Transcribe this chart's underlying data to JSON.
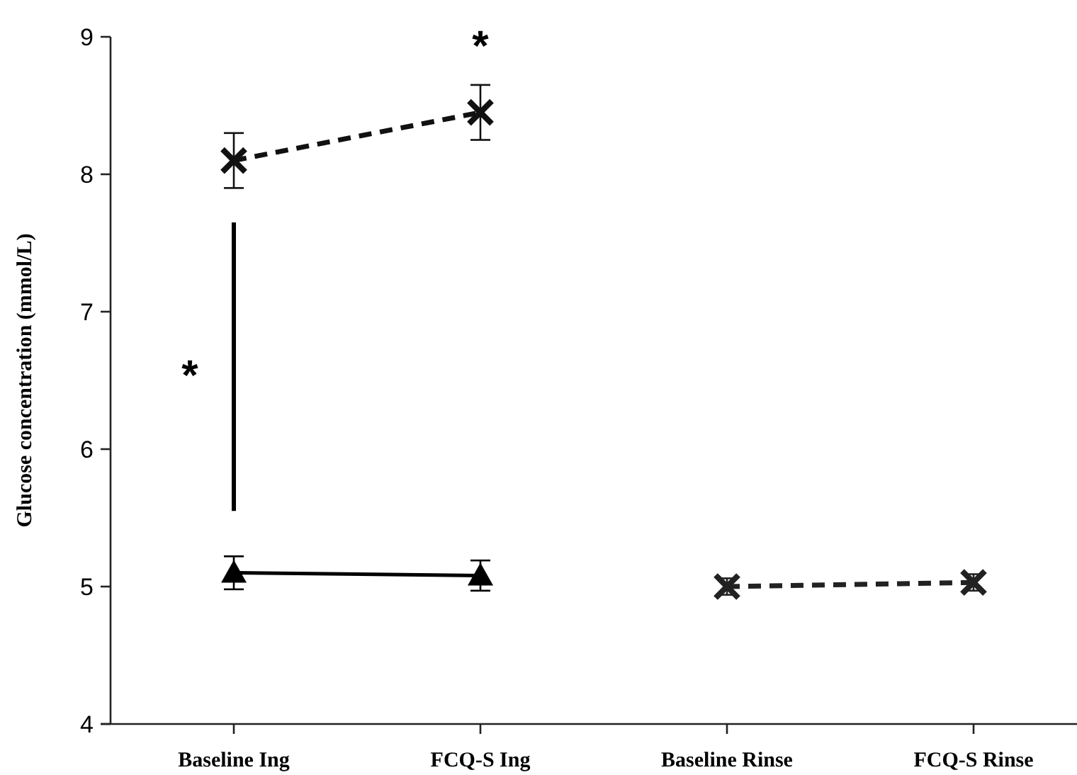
{
  "chart_data": {
    "type": "line",
    "ylabel": "Glucose concentration (mmol/L)",
    "categories": [
      "Baseline Ing",
      "FCQ-S Ing",
      "Baseline Rinse",
      "FCQ-S Rinse"
    ],
    "ylim": [
      4,
      9
    ],
    "yticks": [
      4,
      5,
      6,
      7,
      8,
      9
    ],
    "grid": false,
    "series": [
      {
        "color": "#000000",
        "marker": "triangle",
        "line_style": "solid",
        "values": [
          5.1,
          5.08,
          null,
          null
        ],
        "errors": [
          0.12,
          0.11,
          null,
          null
        ]
      },
      {
        "color": "#111111",
        "marker": "cross",
        "line_style": "dashed",
        "values": [
          8.1,
          8.45,
          null,
          null
        ],
        "errors": [
          0.2,
          0.2,
          null,
          null
        ]
      },
      {
        "color": "#222222",
        "marker": "cross",
        "line_style": "dashed",
        "values": [
          null,
          null,
          5.0,
          5.03
        ],
        "errors": [
          null,
          null,
          0.06,
          0.06
        ]
      }
    ],
    "annotations": [
      "*",
      {
        "text": "*",
        "x": "FCQ-S Ing",
        "y": 8.45
      }
    ]
  }
}
